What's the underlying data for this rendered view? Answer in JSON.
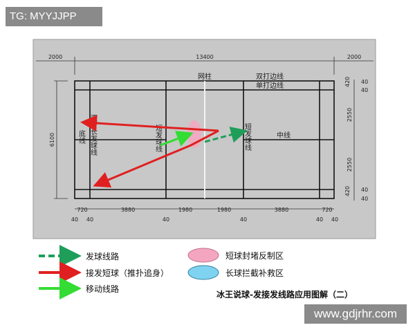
{
  "watermark_top": "TG: MYYJJPP",
  "watermark_bottom": "www.gdjrhr.com",
  "court": {
    "dims_top": [
      "2000",
      "13400",
      "2000"
    ],
    "dim_height": "6100",
    "dims_right": [
      "40",
      "420",
      "40",
      "2550",
      "2550",
      "40",
      "420",
      "40"
    ],
    "dims_bottom": [
      "720",
      "3880",
      "1980",
      "1980",
      "3880",
      "720"
    ],
    "line_width_marks": [
      "40",
      "40",
      "40",
      "40",
      "40",
      "40"
    ],
    "labels": {
      "net_post": "网柱",
      "doubles_sideline": "双打边线",
      "singles_sideline": "单打边线",
      "center_line": "中线",
      "back_line": "底线",
      "doubles_long_service_line": "双打长发球线",
      "short_service_line_left": "短发球线",
      "short_service_line_right": "短发球线"
    }
  },
  "legend": {
    "serve_route": "发球线路",
    "return_short": "接发短球（推扑追身）",
    "movement_route": "移动线路",
    "short_block_zone": "短球封堵反制区",
    "long_intercept_zone": "长球拦截补救区"
  },
  "caption": "冰王说球-发接发线路应用图解（二）",
  "colors": {
    "serve": "#1f9e5a",
    "return": "#e02020",
    "move": "#33dd33",
    "pink": "#f4a6c0",
    "blue": "#7fd3f0",
    "panel": "#c8c8c8"
  }
}
